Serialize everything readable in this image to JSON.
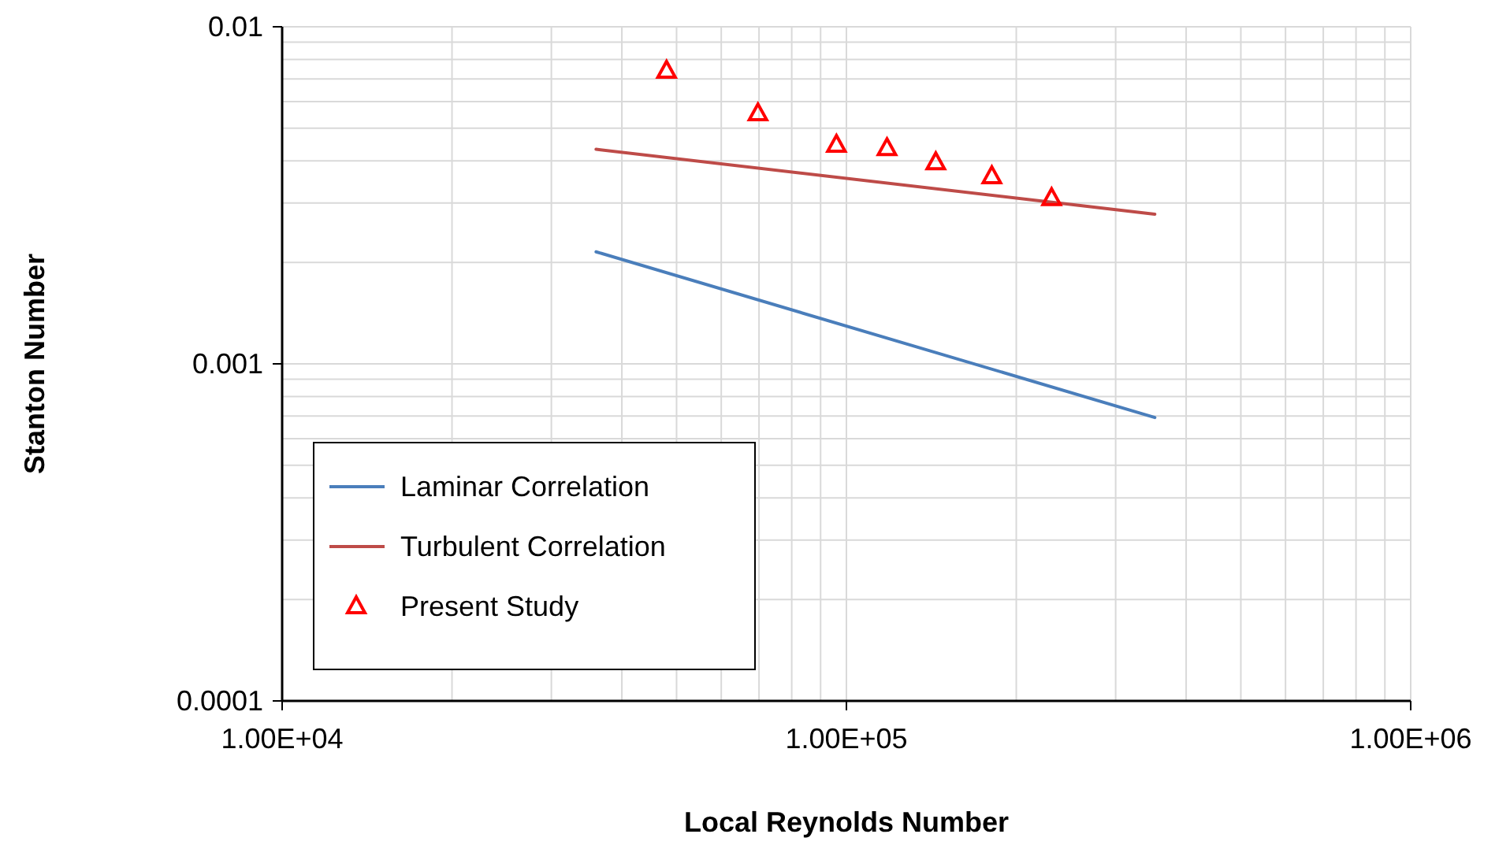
{
  "chart_data": {
    "type": "line",
    "xlabel": "Local Reynolds Number",
    "ylabel": "Stanton Number",
    "log": "xy",
    "grid": true,
    "legend": "bottom left",
    "xlim": [
      10000,
      1000000
    ],
    "ylim": [
      0.0001,
      0.01
    ],
    "xticks": [
      {
        "value": 10000,
        "label": "1.00E+04"
      },
      {
        "value": 100000,
        "label": "1.00E+05"
      },
      {
        "value": 1000000,
        "label": "1.00E+06"
      }
    ],
    "yticks": [
      0.0001,
      0.001,
      0.01
    ],
    "series": [
      {
        "name": "Laminar Correlation",
        "color": "#4a7ebb",
        "marker": "none",
        "x": [
          36000,
          352000
        ],
        "values": [
          0.00215,
          0.000693
        ]
      },
      {
        "name": "Turbulent Correlation",
        "color": "#be4b48",
        "marker": "none",
        "x": [
          36000,
          352000
        ],
        "values": [
          0.00433,
          0.00278
        ]
      },
      {
        "name": "Present Study",
        "type": "scatter",
        "color": "#ff0000",
        "marker": "triangle",
        "x": [
          48000,
          69700,
          96000,
          118000,
          144000,
          181000,
          231000
        ],
        "values": [
          0.0074,
          0.00553,
          0.00446,
          0.00436,
          0.00396,
          0.0036,
          0.0031
        ]
      }
    ]
  }
}
